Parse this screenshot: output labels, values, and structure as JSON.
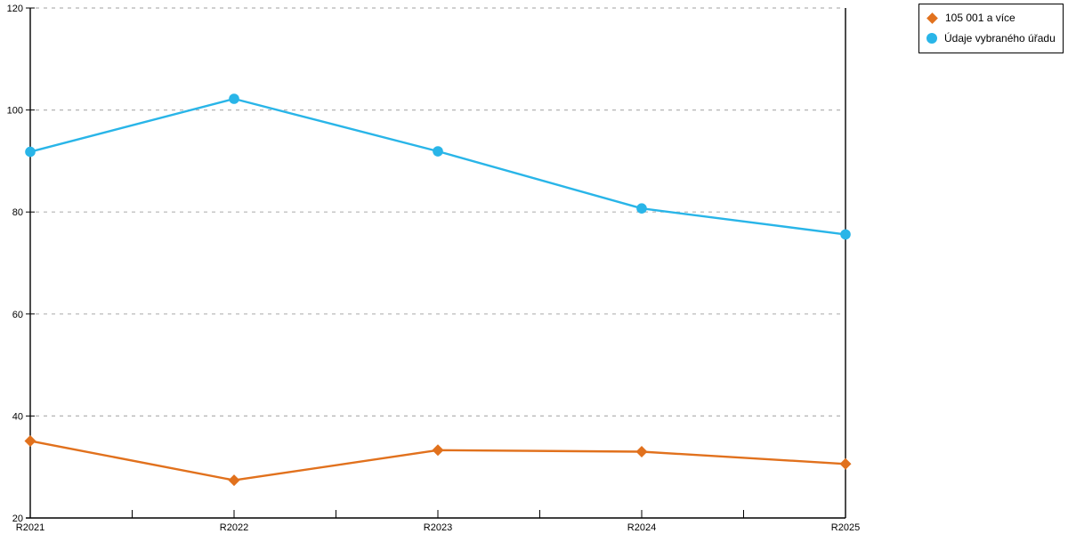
{
  "chart_data": {
    "type": "line",
    "title": "",
    "xlabel": "",
    "ylabel": "",
    "categories": [
      "R2021",
      "R2022",
      "R2023",
      "R2024",
      "R2025"
    ],
    "series": [
      {
        "name": "105 001 a více",
        "marker": "diamond",
        "color": "#e1711d",
        "values": [
          35.1,
          27.4,
          33.3,
          33.0,
          30.6
        ]
      },
      {
        "name": "Údaje vybraného úřadu",
        "marker": "circle",
        "color": "#29b5e8",
        "values": [
          91.8,
          102.2,
          91.9,
          80.7,
          75.6
        ]
      }
    ],
    "ylim": [
      20,
      120
    ],
    "yticks": [
      20,
      40,
      60,
      80,
      100,
      120
    ],
    "grid": "horizontal-dashed",
    "gridline_color": "#b3b3b3",
    "axis_color": "#000000",
    "legend_position": "top-right"
  }
}
